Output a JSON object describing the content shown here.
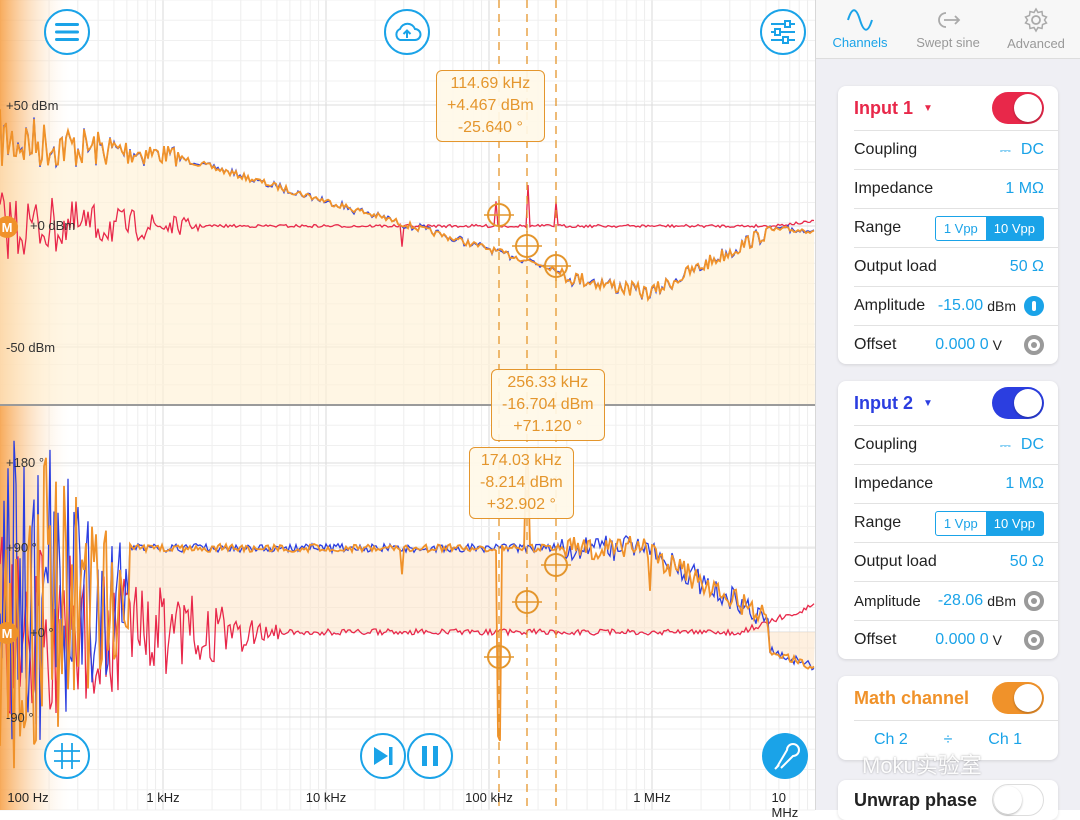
{
  "plot": {
    "magnitude_labels": [
      "+50 dBm",
      "+0 dBm",
      "-50 dBm"
    ],
    "phase_labels": [
      "+180 °",
      "+90 °",
      "+0 °",
      "-90 °"
    ],
    "freq_labels": [
      "100 Hz",
      "1 kHz",
      "10 kHz",
      "100 kHz",
      "1 MHz",
      "10 MHz"
    ],
    "marker_label": "M",
    "cursors": [
      {
        "freq": "114.69 kHz",
        "mag": "+4.467 dBm",
        "phase": "-25.640 °"
      },
      {
        "freq": "256.33 kHz",
        "mag": "-16.704 dBm",
        "phase": "+71.120 °"
      },
      {
        "freq": "174.03 kHz",
        "mag": "-8.214 dBm",
        "phase": "+32.902 °"
      }
    ],
    "icons": {
      "menu": "menu-icon",
      "upload": "cloud-upload-icon",
      "settings": "sliders-icon",
      "grid": "grid-icon",
      "step": "skip-forward-icon",
      "pause": "pause-icon",
      "probe": "probe-icon"
    }
  },
  "tabs": [
    {
      "label": "Channels",
      "icon": "sine-wave-icon",
      "active": true
    },
    {
      "label": "Swept sine",
      "icon": "swept-arrow-icon",
      "active": false
    },
    {
      "label": "Advanced",
      "icon": "gear-icon",
      "active": false
    }
  ],
  "input1": {
    "name": "Input 1",
    "color": "#e8284a",
    "coupling_label": "Coupling",
    "coupling_value": "DC",
    "impedance_label": "Impedance",
    "impedance_value": "1 MΩ",
    "range_label": "Range",
    "range_options": [
      "1 Vpp",
      "10 Vpp"
    ],
    "range_selected": "10 Vpp",
    "output_load_label": "Output load",
    "output_load_value": "50 Ω",
    "amplitude_label": "Amplitude",
    "amplitude_value": "-15.00",
    "amplitude_unit": "dBm",
    "offset_label": "Offset",
    "offset_value": "0.000 0",
    "offset_unit": "V"
  },
  "input2": {
    "name": "Input 2",
    "color": "#2b3ee0",
    "coupling_label": "Coupling",
    "coupling_value": "DC",
    "impedance_label": "Impedance",
    "impedance_value": "1 MΩ",
    "range_label": "Range",
    "range_options": [
      "1 Vpp",
      "10 Vpp"
    ],
    "range_selected": "10 Vpp",
    "output_load_label": "Output load",
    "output_load_value": "50 Ω",
    "amplitude_label": "Amplitude",
    "amplitude_value": "-28.06",
    "amplitude_unit": "dBm",
    "offset_label": "Offset",
    "offset_value": "0.000 0",
    "offset_unit": "V"
  },
  "math": {
    "name": "Math channel",
    "color": "#f0922a",
    "operand_a": "Ch 2",
    "operator": "÷",
    "operand_b": "Ch 1"
  },
  "unwrap": {
    "label": "Unwrap phase"
  },
  "watermark": "Moku实验室",
  "colors": {
    "accent": "#1aa3e8",
    "ch1": "#e8284a",
    "ch2": "#2b3ee0",
    "math": "#f0922a"
  }
}
